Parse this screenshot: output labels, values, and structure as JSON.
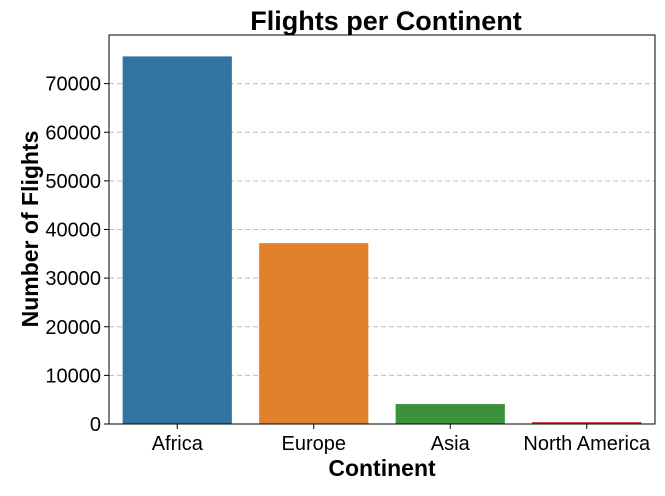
{
  "chart_data": {
    "type": "bar",
    "title": "Flights per Continent",
    "xlabel": "Continent",
    "ylabel": "Number of Flights",
    "categories": [
      "Africa",
      "Europe",
      "Asia",
      "North America"
    ],
    "values": [
      75600,
      37200,
      4100,
      400
    ],
    "colors": [
      "#3274a1",
      "#e1812c",
      "#3a923a",
      "#c03d3e"
    ],
    "ylim": [
      0,
      80000
    ],
    "yticks": [
      0,
      10000,
      20000,
      30000,
      40000,
      50000,
      60000,
      70000
    ],
    "ytick_labels": [
      "0",
      "10000",
      "20000",
      "30000",
      "40000",
      "50000",
      "60000",
      "70000"
    ],
    "grid": "y-dashed",
    "legend": "none"
  }
}
